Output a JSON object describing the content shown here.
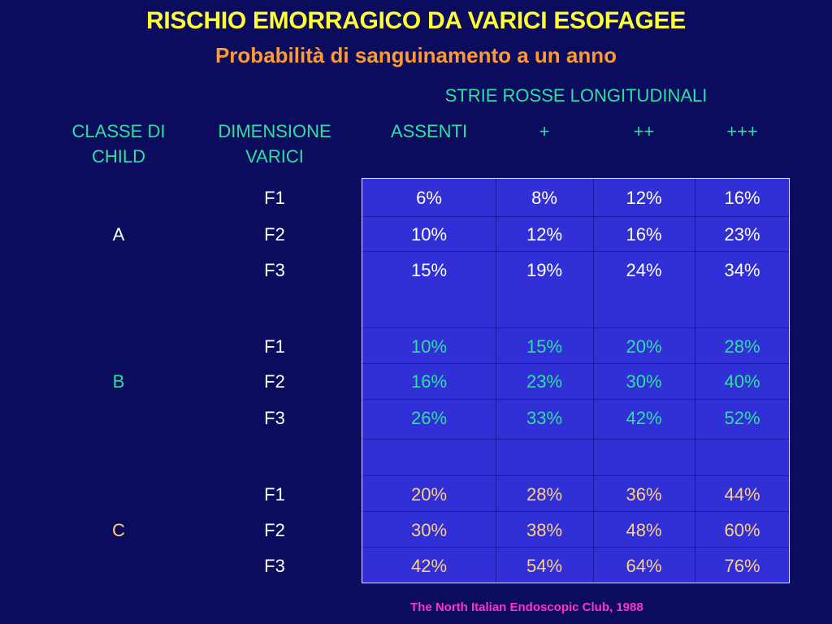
{
  "title": "RISCHIO EMORRAGICO DA VARICI ESOFAGEE",
  "subtitle": "Probabilità di sanguinamento a un anno",
  "header": {
    "group_label": "STRIE ROSSE LONGITUDINALI",
    "col_child_1": "CLASSE DI",
    "col_child_2": "CHILD",
    "col_dim_1": "DIMENSIONE",
    "col_dim_2": "VARICI",
    "col_assenti": "ASSENTI",
    "col_plus1": "+",
    "col_plus2": "++",
    "col_plus3": "+++"
  },
  "groups": [
    {
      "class": "A",
      "rows": [
        {
          "dim": "F1",
          "values": [
            "6%",
            "8%",
            "12%",
            "16%"
          ]
        },
        {
          "dim": "F2",
          "values": [
            "10%",
            "12%",
            "16%",
            "23%"
          ]
        },
        {
          "dim": "F3",
          "values": [
            "15%",
            "19%",
            "24%",
            "34%"
          ]
        }
      ]
    },
    {
      "class": "B",
      "rows": [
        {
          "dim": "F1",
          "values": [
            "10%",
            "15%",
            "20%",
            "28%"
          ]
        },
        {
          "dim": "F2",
          "values": [
            "16%",
            "23%",
            "30%",
            "40%"
          ]
        },
        {
          "dim": "F3",
          "values": [
            "26%",
            "33%",
            "42%",
            "52%"
          ]
        }
      ]
    },
    {
      "class": "C",
      "rows": [
        {
          "dim": "F1",
          "values": [
            "20%",
            "28%",
            "36%",
            "44%"
          ]
        },
        {
          "dim": "F2",
          "values": [
            "30%",
            "38%",
            "48%",
            "60%"
          ]
        },
        {
          "dim": "F3",
          "values": [
            "42%",
            "54%",
            "64%",
            "76%"
          ]
        }
      ]
    }
  ],
  "source": "The North Italian Endoscopic Club, 1988",
  "colors": {
    "background": "#0c0c5e",
    "title": "#ffff33",
    "subtitle": "#ff9933",
    "header": "#2ee0a0",
    "table_fill": "#3030d6",
    "class_a_text": "#ffffff",
    "class_b_text": "#2ee0a0",
    "class_c_text": "#ffd080",
    "source": "#ff33cc"
  }
}
